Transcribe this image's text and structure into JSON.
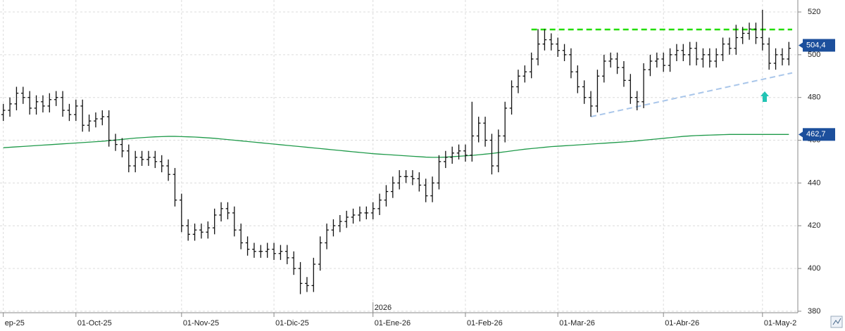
{
  "chart_data": {
    "type": "ohlc",
    "categories": [
      "ep-25",
      null,
      null,
      null,
      null,
      null,
      null,
      null,
      null,
      null,
      null,
      "01-Oct-25",
      null,
      null,
      null,
      null,
      null,
      null,
      null,
      null,
      null,
      null,
      null,
      null,
      null,
      null,
      null,
      "01-Nov-25",
      null,
      null,
      null,
      null,
      null,
      null,
      null,
      null,
      null,
      null,
      null,
      null,
      null,
      "01-Dic-25",
      null,
      null,
      null,
      null,
      null,
      null,
      null,
      null,
      null,
      null,
      null,
      null,
      null,
      null,
      "01-Ene-26",
      null,
      null,
      null,
      null,
      null,
      null,
      null,
      null,
      null,
      null,
      null,
      null,
      null,
      "01-Feb-26",
      null,
      null,
      null,
      null,
      null,
      null,
      null,
      null,
      null,
      null,
      null,
      null,
      null,
      "01-Mar-26",
      null,
      null,
      null,
      null,
      null,
      null,
      null,
      null,
      null,
      null,
      null,
      null,
      null,
      null,
      null,
      "01-Abr-26",
      null,
      null,
      null,
      null,
      null,
      null,
      null,
      null,
      null,
      null,
      null,
      null,
      null,
      null,
      "01-May-2",
      null,
      null,
      null,
      null
    ],
    "open": [
      472,
      474,
      477,
      482,
      480,
      475,
      478,
      476,
      479,
      480,
      474,
      472,
      476,
      467,
      469,
      470,
      471,
      460,
      458,
      455,
      448,
      452,
      451,
      452,
      450,
      448,
      444,
      432,
      420,
      416,
      418,
      417,
      419,
      425,
      428,
      426,
      418,
      412,
      409,
      408,
      408,
      409,
      407,
      408,
      405,
      400,
      393,
      392,
      402,
      412,
      418,
      420,
      422,
      424,
      425,
      426,
      426,
      428,
      432,
      436,
      440,
      443,
      443,
      442,
      439,
      434,
      440,
      450,
      452,
      454,
      455,
      453,
      462,
      468,
      460,
      448,
      462,
      475,
      485,
      490,
      492,
      498,
      505,
      507,
      505,
      502,
      500,
      492,
      485,
      480,
      476,
      490,
      497,
      498,
      494,
      488,
      480,
      478,
      493,
      497,
      498,
      495,
      500,
      502,
      500,
      503,
      498,
      500,
      497,
      500,
      505,
      503,
      508,
      510,
      512,
      508,
      505,
      496,
      500,
      498
    ],
    "high": [
      477,
      480,
      485,
      485,
      483,
      481,
      481,
      482,
      483,
      483,
      477,
      479,
      479,
      472,
      473,
      474,
      474,
      463,
      461,
      458,
      455,
      455,
      455,
      455,
      453,
      451,
      447,
      435,
      423,
      421,
      421,
      422,
      428,
      431,
      431,
      429,
      421,
      415,
      412,
      411,
      412,
      412,
      411,
      411,
      408,
      403,
      396,
      405,
      415,
      421,
      423,
      425,
      427,
      428,
      429,
      429,
      431,
      435,
      439,
      443,
      446,
      446,
      446,
      445,
      442,
      443,
      453,
      455,
      457,
      458,
      458,
      478,
      471,
      471,
      463,
      465,
      478,
      488,
      493,
      495,
      501,
      512,
      512,
      510,
      508,
      505,
      503,
      495,
      488,
      483,
      493,
      500,
      501,
      501,
      497,
      491,
      483,
      496,
      500,
      501,
      501,
      503,
      505,
      505,
      506,
      506,
      503,
      503,
      503,
      508,
      508,
      514,
      513,
      515,
      515,
      521,
      508,
      503,
      503,
      506
    ],
    "low": [
      469,
      471,
      474,
      477,
      472,
      472,
      473,
      473,
      476,
      471,
      469,
      469,
      464,
      464,
      466,
      467,
      457,
      455,
      452,
      445,
      445,
      448,
      448,
      447,
      445,
      441,
      429,
      417,
      413,
      413,
      414,
      414,
      416,
      422,
      423,
      415,
      409,
      406,
      405,
      405,
      405,
      404,
      404,
      402,
      397,
      388,
      389,
      389,
      399,
      409,
      415,
      417,
      419,
      421,
      422,
      423,
      423,
      425,
      429,
      433,
      437,
      440,
      439,
      436,
      431,
      431,
      437,
      447,
      449,
      451,
      450,
      450,
      459,
      457,
      444,
      445,
      459,
      472,
      482,
      487,
      489,
      495,
      502,
      502,
      499,
      497,
      489,
      482,
      477,
      471,
      473,
      487,
      494,
      491,
      485,
      477,
      474,
      475,
      490,
      494,
      492,
      492,
      497,
      497,
      495,
      495,
      494,
      494,
      494,
      497,
      500,
      500,
      505,
      507,
      505,
      502,
      493,
      493,
      495,
      495
    ],
    "close": [
      474,
      477,
      482,
      480,
      475,
      478,
      476,
      479,
      480,
      474,
      472,
      476,
      467,
      469,
      470,
      471,
      460,
      458,
      455,
      448,
      452,
      451,
      452,
      450,
      448,
      444,
      432,
      420,
      416,
      418,
      417,
      419,
      425,
      428,
      426,
      418,
      412,
      409,
      408,
      408,
      409,
      407,
      408,
      405,
      400,
      393,
      392,
      402,
      412,
      418,
      420,
      422,
      424,
      425,
      426,
      426,
      428,
      432,
      436,
      440,
      443,
      443,
      442,
      439,
      434,
      440,
      450,
      452,
      454,
      455,
      453,
      462,
      468,
      460,
      448,
      462,
      475,
      485,
      490,
      492,
      498,
      505,
      507,
      505,
      502,
      500,
      492,
      485,
      480,
      476,
      490,
      497,
      498,
      494,
      488,
      480,
      478,
      493,
      497,
      498,
      495,
      500,
      502,
      500,
      503,
      498,
      500,
      497,
      500,
      505,
      503,
      508,
      510,
      512,
      508,
      505,
      496,
      500,
      498,
      503
    ],
    "color": "#111111",
    "ma": {
      "color": "#1f9a4a",
      "values": [
        456.5,
        456.7,
        456.9,
        457.1,
        457.3,
        457.5,
        457.7,
        457.9,
        458.1,
        458.3,
        458.5,
        458.7,
        458.9,
        459.1,
        459.3,
        459.5,
        459.8,
        460.1,
        460.4,
        460.7,
        461.0,
        461.2,
        461.4,
        461.6,
        461.7,
        461.8,
        461.8,
        461.7,
        461.6,
        461.5,
        461.3,
        461.1,
        460.9,
        460.6,
        460.3,
        460.0,
        459.7,
        459.4,
        459.1,
        458.8,
        458.5,
        458.2,
        457.9,
        457.6,
        457.3,
        457.0,
        456.7,
        456.4,
        456.1,
        455.8,
        455.5,
        455.2,
        454.9,
        454.6,
        454.3,
        454.0,
        453.7,
        453.5,
        453.3,
        453.1,
        452.9,
        452.7,
        452.5,
        452.3,
        452.1,
        452.0,
        452.0,
        452.1,
        452.3,
        452.5,
        452.7,
        452.9,
        453.2,
        453.5,
        453.8,
        454.2,
        454.6,
        455.0,
        455.4,
        455.8,
        456.1,
        456.4,
        456.7,
        457.0,
        457.2,
        457.4,
        457.6,
        457.8,
        458.0,
        458.2,
        458.4,
        458.6,
        458.8,
        459.0,
        459.2,
        459.4,
        459.7,
        460.0,
        460.3,
        460.6,
        460.9,
        461.2,
        461.5,
        461.8,
        462.0,
        462.2,
        462.3,
        462.4,
        462.5,
        462.6,
        462.7,
        462.7,
        462.7,
        462.7,
        462.7,
        462.7,
        462.7,
        462.7,
        462.7,
        462.7
      ]
    },
    "ylim": [
      379.3,
      525.6
    ],
    "yticks": [
      380,
      400,
      420,
      440,
      460,
      480,
      500,
      520
    ],
    "grid": true,
    "last_price": {
      "value": 504.4,
      "label": "504,4"
    },
    "ma_last": {
      "value": 462.7,
      "label": "462,7"
    },
    "year_label": "2026",
    "lines": [
      {
        "color": "#22dd00",
        "x": [
          80,
          119.5
        ],
        "y": [
          511.8,
          511.8
        ]
      },
      {
        "color": "#a9c6ea",
        "x": [
          89,
          119.5
        ],
        "y": [
          471,
          491.5
        ]
      }
    ]
  }
}
